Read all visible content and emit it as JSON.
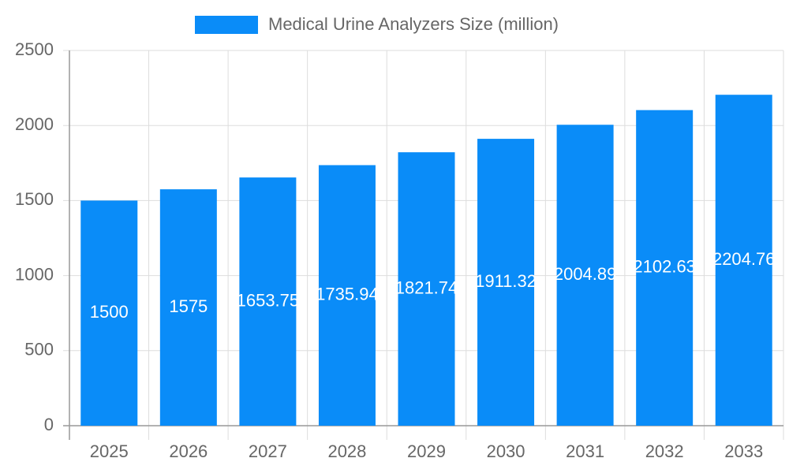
{
  "chart_data": {
    "type": "bar",
    "legend_position": "top",
    "series": [
      {
        "name": "Medical Urine Analyzers Size (million)",
        "color": "#0a8cf8",
        "values": [
          1500,
          1575,
          1653.75,
          1735.94,
          1821.74,
          1911.32,
          2004.89,
          2102.63,
          2204.76
        ]
      }
    ],
    "categories": [
      "2025",
      "2026",
      "2027",
      "2028",
      "2029",
      "2030",
      "2031",
      "2032",
      "2033"
    ],
    "ylim": [
      0,
      2500
    ],
    "yticks": [
      0,
      500,
      1000,
      1500,
      2000,
      2500
    ],
    "grid": true
  }
}
